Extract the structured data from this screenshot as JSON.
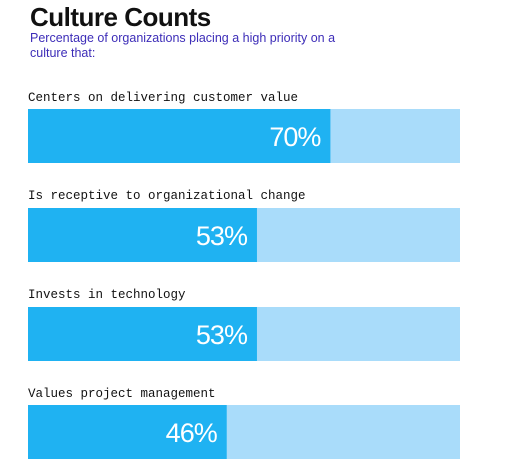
{
  "title": "Culture Counts",
  "subtitle": "Percentage of organizations placing a high priority on a culture that:",
  "colors": {
    "bar_fill": "#1fb2f2",
    "bar_track": "#a9dcfa",
    "value_text": "#ffffff",
    "subtitle": "#3d2db8"
  },
  "chart_data": {
    "type": "bar",
    "orientation": "horizontal",
    "title": "Culture Counts",
    "subtitle": "Percentage of organizations placing a high priority on a culture that:",
    "categories": [
      "Centers on delivering customer value",
      "Is receptive to organizational change",
      "Invests in technology",
      "Values project management"
    ],
    "values": [
      70,
      53,
      53,
      46
    ],
    "value_labels": [
      "70%",
      "53%",
      "53%",
      "46%"
    ],
    "xlim": [
      0,
      100
    ],
    "xlabel": "",
    "ylabel": "",
    "grid": false,
    "legend": "none"
  }
}
